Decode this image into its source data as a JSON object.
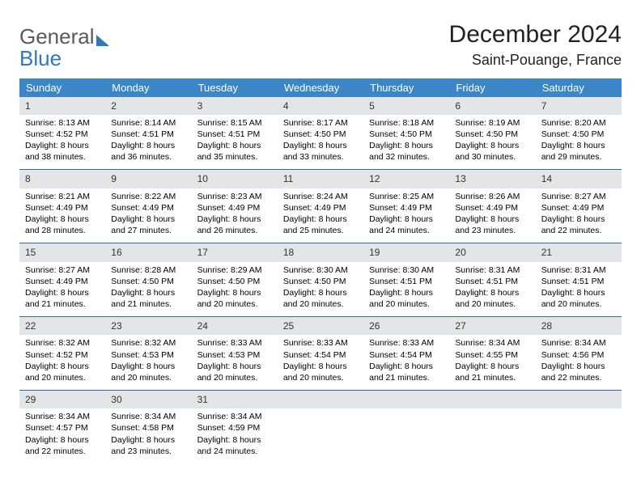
{
  "colors": {
    "header_bg": "#3b86c6",
    "header_text": "#ffffff",
    "daynum_bg": "#e4e5e6",
    "week_border": "#2f6aa0",
    "logo_gray": "#5a5a5a",
    "logo_blue": "#2f78bd"
  },
  "logo": {
    "word1": "General",
    "word2": "Blue"
  },
  "title": {
    "month": "December 2024",
    "place": "Saint-Pouange, France"
  },
  "day_names": [
    "Sunday",
    "Monday",
    "Tuesday",
    "Wednesday",
    "Thursday",
    "Friday",
    "Saturday"
  ],
  "weeks": [
    [
      {
        "n": "1",
        "sr": "Sunrise: 8:13 AM",
        "ss": "Sunset: 4:52 PM",
        "d1": "Daylight: 8 hours",
        "d2": "and 38 minutes."
      },
      {
        "n": "2",
        "sr": "Sunrise: 8:14 AM",
        "ss": "Sunset: 4:51 PM",
        "d1": "Daylight: 8 hours",
        "d2": "and 36 minutes."
      },
      {
        "n": "3",
        "sr": "Sunrise: 8:15 AM",
        "ss": "Sunset: 4:51 PM",
        "d1": "Daylight: 8 hours",
        "d2": "and 35 minutes."
      },
      {
        "n": "4",
        "sr": "Sunrise: 8:17 AM",
        "ss": "Sunset: 4:50 PM",
        "d1": "Daylight: 8 hours",
        "d2": "and 33 minutes."
      },
      {
        "n": "5",
        "sr": "Sunrise: 8:18 AM",
        "ss": "Sunset: 4:50 PM",
        "d1": "Daylight: 8 hours",
        "d2": "and 32 minutes."
      },
      {
        "n": "6",
        "sr": "Sunrise: 8:19 AM",
        "ss": "Sunset: 4:50 PM",
        "d1": "Daylight: 8 hours",
        "d2": "and 30 minutes."
      },
      {
        "n": "7",
        "sr": "Sunrise: 8:20 AM",
        "ss": "Sunset: 4:50 PM",
        "d1": "Daylight: 8 hours",
        "d2": "and 29 minutes."
      }
    ],
    [
      {
        "n": "8",
        "sr": "Sunrise: 8:21 AM",
        "ss": "Sunset: 4:49 PM",
        "d1": "Daylight: 8 hours",
        "d2": "and 28 minutes."
      },
      {
        "n": "9",
        "sr": "Sunrise: 8:22 AM",
        "ss": "Sunset: 4:49 PM",
        "d1": "Daylight: 8 hours",
        "d2": "and 27 minutes."
      },
      {
        "n": "10",
        "sr": "Sunrise: 8:23 AM",
        "ss": "Sunset: 4:49 PM",
        "d1": "Daylight: 8 hours",
        "d2": "and 26 minutes."
      },
      {
        "n": "11",
        "sr": "Sunrise: 8:24 AM",
        "ss": "Sunset: 4:49 PM",
        "d1": "Daylight: 8 hours",
        "d2": "and 25 minutes."
      },
      {
        "n": "12",
        "sr": "Sunrise: 8:25 AM",
        "ss": "Sunset: 4:49 PM",
        "d1": "Daylight: 8 hours",
        "d2": "and 24 minutes."
      },
      {
        "n": "13",
        "sr": "Sunrise: 8:26 AM",
        "ss": "Sunset: 4:49 PM",
        "d1": "Daylight: 8 hours",
        "d2": "and 23 minutes."
      },
      {
        "n": "14",
        "sr": "Sunrise: 8:27 AM",
        "ss": "Sunset: 4:49 PM",
        "d1": "Daylight: 8 hours",
        "d2": "and 22 minutes."
      }
    ],
    [
      {
        "n": "15",
        "sr": "Sunrise: 8:27 AM",
        "ss": "Sunset: 4:49 PM",
        "d1": "Daylight: 8 hours",
        "d2": "and 21 minutes."
      },
      {
        "n": "16",
        "sr": "Sunrise: 8:28 AM",
        "ss": "Sunset: 4:50 PM",
        "d1": "Daylight: 8 hours",
        "d2": "and 21 minutes."
      },
      {
        "n": "17",
        "sr": "Sunrise: 8:29 AM",
        "ss": "Sunset: 4:50 PM",
        "d1": "Daylight: 8 hours",
        "d2": "and 20 minutes."
      },
      {
        "n": "18",
        "sr": "Sunrise: 8:30 AM",
        "ss": "Sunset: 4:50 PM",
        "d1": "Daylight: 8 hours",
        "d2": "and 20 minutes."
      },
      {
        "n": "19",
        "sr": "Sunrise: 8:30 AM",
        "ss": "Sunset: 4:51 PM",
        "d1": "Daylight: 8 hours",
        "d2": "and 20 minutes."
      },
      {
        "n": "20",
        "sr": "Sunrise: 8:31 AM",
        "ss": "Sunset: 4:51 PM",
        "d1": "Daylight: 8 hours",
        "d2": "and 20 minutes."
      },
      {
        "n": "21",
        "sr": "Sunrise: 8:31 AM",
        "ss": "Sunset: 4:51 PM",
        "d1": "Daylight: 8 hours",
        "d2": "and 20 minutes."
      }
    ],
    [
      {
        "n": "22",
        "sr": "Sunrise: 8:32 AM",
        "ss": "Sunset: 4:52 PM",
        "d1": "Daylight: 8 hours",
        "d2": "and 20 minutes."
      },
      {
        "n": "23",
        "sr": "Sunrise: 8:32 AM",
        "ss": "Sunset: 4:53 PM",
        "d1": "Daylight: 8 hours",
        "d2": "and 20 minutes."
      },
      {
        "n": "24",
        "sr": "Sunrise: 8:33 AM",
        "ss": "Sunset: 4:53 PM",
        "d1": "Daylight: 8 hours",
        "d2": "and 20 minutes."
      },
      {
        "n": "25",
        "sr": "Sunrise: 8:33 AM",
        "ss": "Sunset: 4:54 PM",
        "d1": "Daylight: 8 hours",
        "d2": "and 20 minutes."
      },
      {
        "n": "26",
        "sr": "Sunrise: 8:33 AM",
        "ss": "Sunset: 4:54 PM",
        "d1": "Daylight: 8 hours",
        "d2": "and 21 minutes."
      },
      {
        "n": "27",
        "sr": "Sunrise: 8:34 AM",
        "ss": "Sunset: 4:55 PM",
        "d1": "Daylight: 8 hours",
        "d2": "and 21 minutes."
      },
      {
        "n": "28",
        "sr": "Sunrise: 8:34 AM",
        "ss": "Sunset: 4:56 PM",
        "d1": "Daylight: 8 hours",
        "d2": "and 22 minutes."
      }
    ],
    [
      {
        "n": "29",
        "sr": "Sunrise: 8:34 AM",
        "ss": "Sunset: 4:57 PM",
        "d1": "Daylight: 8 hours",
        "d2": "and 22 minutes."
      },
      {
        "n": "30",
        "sr": "Sunrise: 8:34 AM",
        "ss": "Sunset: 4:58 PM",
        "d1": "Daylight: 8 hours",
        "d2": "and 23 minutes."
      },
      {
        "n": "31",
        "sr": "Sunrise: 8:34 AM",
        "ss": "Sunset: 4:59 PM",
        "d1": "Daylight: 8 hours",
        "d2": "and 24 minutes."
      },
      {
        "empty": true
      },
      {
        "empty": true
      },
      {
        "empty": true
      },
      {
        "empty": true
      }
    ]
  ]
}
